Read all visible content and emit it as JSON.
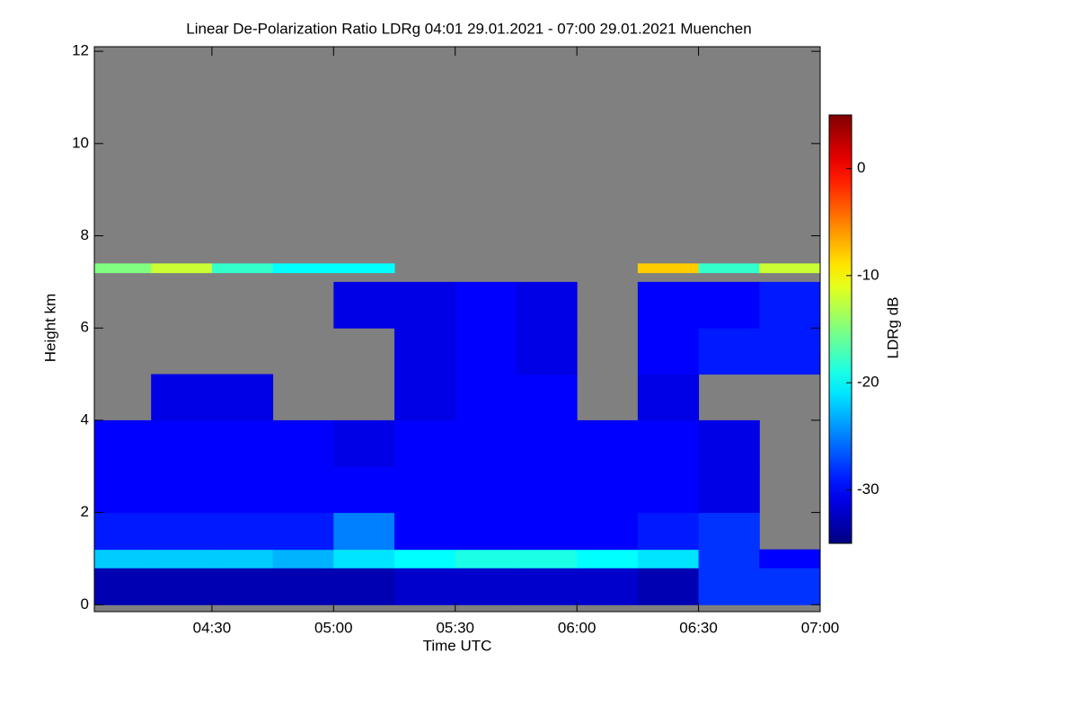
{
  "chart_data": {
    "type": "heatmap",
    "title": "Linear De-Polarization Ratio LDRg   04:01 29.01.2021 - 07:00 29.01.2021 Muenchen",
    "x_label": "Time UTC",
    "y_label": "Height km",
    "colorbar_label": "LDRg dB",
    "colormap": "jet",
    "nodata_color": "#808080",
    "xlim": [
      "04:01",
      "07:00"
    ],
    "xticks": [
      "04:30",
      "05:00",
      "05:30",
      "06:00",
      "06:30",
      "07:00"
    ],
    "ylim": [
      -0.15,
      12.1
    ],
    "yticks": [
      0,
      2,
      4,
      6,
      8,
      10,
      12
    ],
    "clim": [
      -35,
      5
    ],
    "cticks": [
      -30,
      -20,
      -10,
      0
    ],
    "x_bins": [
      "04:01",
      "04:15",
      "04:30",
      "04:45",
      "05:00",
      "05:15",
      "05:30",
      "05:45",
      "06:00",
      "06:15",
      "06:30",
      "06:45",
      "07:00"
    ],
    "y_bins": [
      0,
      0.8,
      1.2,
      2,
      3,
      4,
      5,
      6,
      7,
      7.2,
      7.4,
      12
    ],
    "z": [
      [
        -33,
        -33,
        -33,
        -33,
        -33,
        -32,
        -32,
        -32,
        -32,
        -33,
        -28,
        -28
      ],
      [
        -22,
        -22,
        -22,
        -23,
        -21,
        -20,
        -19,
        -19,
        -20,
        -21,
        -28,
        -30
      ],
      [
        -29,
        -29,
        -29,
        -29,
        -25,
        -30,
        -30,
        -30,
        -30,
        -29,
        -28,
        null
      ],
      [
        -30,
        -30,
        -30,
        -30,
        -30,
        -30,
        -30,
        -30,
        -30,
        -30,
        -31,
        null
      ],
      [
        -30,
        -30,
        -30,
        -30,
        -31,
        -30,
        -30,
        -30,
        -30,
        -30,
        -31,
        null
      ],
      [
        null,
        -31,
        -31,
        null,
        null,
        -31,
        -30,
        -30,
        null,
        -31,
        null,
        null
      ],
      [
        null,
        null,
        null,
        null,
        null,
        -31,
        -30,
        -31,
        null,
        -30,
        -29,
        -29
      ],
      [
        null,
        null,
        null,
        null,
        -31,
        -31,
        -30,
        -31,
        null,
        -30,
        -30,
        -29
      ],
      [
        null,
        null,
        null,
        null,
        null,
        null,
        null,
        null,
        null,
        null,
        null,
        null
      ],
      [
        -15,
        -12,
        -18,
        -20,
        -20,
        null,
        null,
        null,
        null,
        -8,
        -18,
        -12
      ],
      [
        null,
        null,
        null,
        null,
        null,
        null,
        null,
        null,
        null,
        null,
        null,
        null
      ]
    ]
  }
}
